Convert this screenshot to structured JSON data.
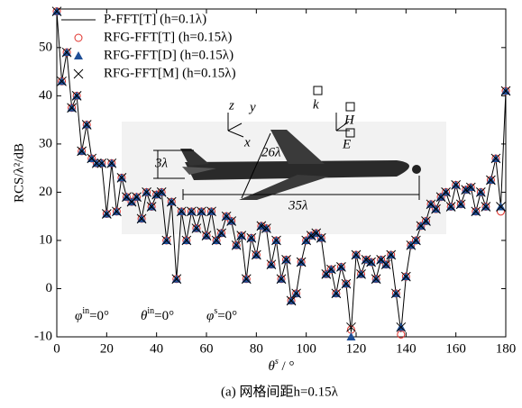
{
  "chart_data": {
    "type": "line",
    "x_label": {
      "symbol": "θ",
      "sup": "s",
      "unit": " / °"
    },
    "y_label": "RCS/λ²/dB",
    "caption": "(a) 网格间距h=0.15λ",
    "xlim": [
      0,
      180
    ],
    "xticks": [
      0,
      20,
      40,
      60,
      80,
      100,
      120,
      140,
      160,
      180
    ],
    "ylim": [
      -10,
      58
    ],
    "yticks": [
      -10,
      0,
      10,
      20,
      30,
      40,
      50
    ],
    "x": [
      0,
      2,
      4,
      6,
      8,
      10,
      12,
      14,
      16,
      18,
      20,
      22,
      24,
      26,
      28,
      30,
      32,
      34,
      36,
      38,
      40,
      42,
      44,
      46,
      48,
      50,
      52,
      54,
      56,
      58,
      60,
      62,
      64,
      66,
      68,
      70,
      72,
      74,
      76,
      78,
      80,
      82,
      84,
      86,
      88,
      90,
      92,
      94,
      96,
      98,
      100,
      102,
      104,
      106,
      108,
      110,
      112,
      114,
      116,
      118,
      120,
      122,
      124,
      126,
      128,
      130,
      132,
      134,
      136,
      138,
      140,
      142,
      144,
      146,
      148,
      150,
      152,
      154,
      156,
      158,
      160,
      162,
      164,
      166,
      168,
      170,
      172,
      174,
      176,
      178,
      180
    ],
    "series": [
      {
        "name": "P-FFT[T] (h=0.1λ)",
        "marker": "line",
        "color": "#000000",
        "values": [
          57.5,
          43,
          49,
          37.5,
          40,
          28.5,
          34,
          27,
          26,
          26,
          15.5,
          26,
          16,
          23,
          19,
          18,
          19,
          14.5,
          20,
          17,
          19.5,
          20,
          10,
          18,
          2,
          16,
          10,
          16,
          12.5,
          16,
          11,
          16,
          10,
          11.5,
          15,
          14,
          9,
          11,
          2,
          10.5,
          7,
          13,
          12.5,
          5,
          10,
          2,
          6,
          -2.5,
          -1,
          5.5,
          10,
          11,
          11.5,
          10.5,
          3,
          4,
          -1,
          4.5,
          1,
          -9,
          7,
          3,
          6,
          5.5,
          2,
          6,
          5,
          7,
          -1,
          -9,
          2.5,
          9,
          10,
          13,
          14,
          17.5,
          16.5,
          19,
          20,
          17,
          21.5,
          17.5,
          20.5,
          21,
          16,
          20,
          17,
          22.5,
          27,
          17,
          41
        ]
      },
      {
        "name": "RFG-FFT[T] (h=0.15λ)",
        "marker": "circle",
        "color": "#e0302a",
        "values": [
          57.5,
          43,
          49,
          37.5,
          40,
          28.5,
          34,
          27,
          26,
          26,
          15.5,
          26,
          16,
          23,
          19,
          18,
          19,
          14.5,
          20,
          17,
          19.5,
          20,
          10,
          18,
          2,
          16,
          10,
          16,
          12.5,
          16,
          11,
          16,
          10,
          11.5,
          15,
          14,
          9,
          11,
          2,
          10.5,
          7,
          13,
          12.5,
          5,
          10,
          2,
          6,
          -2.5,
          -1,
          5.5,
          10,
          11,
          11.5,
          10.5,
          3,
          4,
          -1,
          4.5,
          1,
          -8.5,
          7,
          3,
          6,
          5.5,
          2,
          6,
          5,
          7,
          -1,
          -9.5,
          2.5,
          9,
          10,
          13,
          14,
          17.5,
          16.5,
          19,
          20,
          17,
          21.5,
          17.5,
          20.5,
          21,
          16,
          20,
          17,
          22.5,
          27,
          16,
          41
        ]
      },
      {
        "name": "RFG-FFT[D] (h=0.15λ)",
        "marker": "triangle",
        "color": "#1f4e96",
        "values": [
          57.5,
          43,
          49,
          37.5,
          40,
          28.5,
          34,
          27,
          26,
          26,
          15.5,
          26,
          16,
          23,
          19,
          18,
          19,
          14.5,
          20,
          17,
          19.5,
          20,
          10,
          18,
          2,
          16,
          10,
          16,
          12.5,
          16,
          11,
          16,
          10,
          11.5,
          15,
          14,
          9,
          11,
          2,
          10.5,
          7,
          13,
          12.5,
          5,
          10,
          2,
          6,
          -2.5,
          -1,
          5.5,
          10,
          11,
          11.5,
          10.5,
          3,
          4,
          -1,
          4.5,
          1,
          -10,
          7,
          3,
          6,
          5.5,
          2,
          6,
          5,
          7,
          -1,
          -8,
          2.5,
          9,
          10,
          13,
          14,
          17.5,
          16.5,
          19,
          20,
          17,
          21.5,
          17.5,
          20.5,
          21,
          16,
          20,
          17,
          22.5,
          27,
          17,
          41
        ]
      },
      {
        "name": "RFG-FFT[M] (h=0.15λ)",
        "marker": "x",
        "color": "#000000",
        "values": [
          57.5,
          43,
          49,
          37.5,
          40,
          28.5,
          34,
          27,
          26,
          26,
          15.5,
          26,
          16,
          23,
          19,
          18,
          19,
          14.5,
          20,
          17,
          19.5,
          20,
          10,
          18,
          2,
          16,
          10,
          16,
          12.5,
          16,
          11,
          16,
          10,
          11.5,
          15,
          14,
          9,
          11,
          2,
          10.5,
          7,
          13,
          12.5,
          5,
          10,
          2,
          6,
          -2.5,
          -1,
          5.5,
          10,
          11,
          11.5,
          10.5,
          3,
          4,
          -1,
          4.5,
          1,
          -8,
          7,
          3,
          6,
          5.5,
          2,
          6,
          5,
          7,
          -1,
          -8,
          2.5,
          9,
          10,
          13,
          14,
          17.5,
          16.5,
          19,
          20,
          17,
          21.5,
          17.5,
          20.5,
          21,
          16,
          20,
          17,
          22.5,
          27,
          17,
          41
        ]
      }
    ],
    "annotations": [
      {
        "symbol": "φ",
        "sup": "in",
        "rest": "=0°"
      },
      {
        "symbol": "θ",
        "sup": "in",
        "rest": "=0°"
      },
      {
        "symbol": "φ",
        "sup": "s",
        "rest": "=0°"
      }
    ],
    "inset_labels": {
      "height": "3λ",
      "span": "26λ",
      "length": "35λ",
      "z": "z",
      "y": "y",
      "x": "x",
      "k": "k",
      "H": "H",
      "E": "E"
    }
  }
}
